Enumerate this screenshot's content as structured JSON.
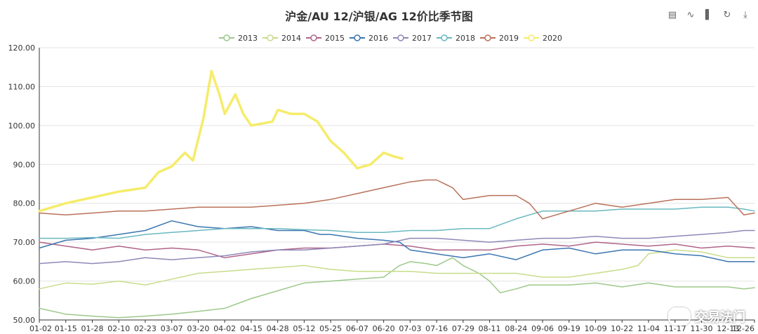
{
  "chart_data": {
    "type": "line",
    "title": "沪金/AU 12/沪银/AG 12价比季节图",
    "ylim": [
      50,
      120
    ],
    "y_ticks": [
      "50.00",
      "60.00",
      "70.00",
      "80.00",
      "90.00",
      "100.00",
      "110.00",
      "120.00"
    ],
    "x_ticks": [
      "01-02",
      "01-15",
      "01-28",
      "02-10",
      "02-23",
      "03-07",
      "03-20",
      "04-02",
      "04-15",
      "04-28",
      "05-12",
      "05-25",
      "06-07",
      "06-20",
      "07-03",
      "07-16",
      "07-29",
      "08-11",
      "08-24",
      "09-06",
      "09-19",
      "10-09",
      "10-22",
      "11-04",
      "11-17",
      "11-30",
      "12-13",
      "12-26"
    ],
    "xlabel": "",
    "ylabel": "",
    "legend_position": "top-center",
    "series": [
      {
        "name": "2013",
        "color": "#9cc98a",
        "points": [
          [
            0,
            53
          ],
          [
            1,
            51.5
          ],
          [
            2,
            51
          ],
          [
            3,
            50.6
          ],
          [
            4,
            51
          ],
          [
            5,
            51.5
          ],
          [
            6,
            52.2
          ],
          [
            7,
            53
          ],
          [
            8,
            55.5
          ],
          [
            9,
            57.5
          ],
          [
            10,
            59.5
          ],
          [
            11,
            60
          ],
          [
            12,
            60.5
          ],
          [
            13,
            61
          ],
          [
            13.6,
            64
          ],
          [
            14,
            65
          ],
          [
            14.6,
            64.5
          ],
          [
            15,
            64
          ],
          [
            15.6,
            66
          ],
          [
            16,
            64
          ],
          [
            16.6,
            62
          ],
          [
            17,
            60
          ],
          [
            17.4,
            57
          ],
          [
            18,
            58
          ],
          [
            18.5,
            59
          ],
          [
            19,
            59
          ],
          [
            20,
            59
          ],
          [
            21,
            59.5
          ],
          [
            22,
            58.5
          ],
          [
            23,
            59.5
          ],
          [
            24,
            58.5
          ],
          [
            25,
            58.5
          ],
          [
            26,
            58.5
          ],
          [
            26.6,
            58
          ],
          [
            27,
            58.3
          ]
        ]
      },
      {
        "name": "2014",
        "color": "#c8dc8a",
        "points": [
          [
            0,
            58
          ],
          [
            1,
            59.5
          ],
          [
            2,
            59.2
          ],
          [
            3,
            60
          ],
          [
            4,
            59
          ],
          [
            5,
            60.5
          ],
          [
            6,
            62
          ],
          [
            7,
            62.5
          ],
          [
            8,
            63
          ],
          [
            9,
            63.5
          ],
          [
            10,
            64
          ],
          [
            11,
            63
          ],
          [
            12,
            62.5
          ],
          [
            13,
            62.5
          ],
          [
            14,
            62.5
          ],
          [
            15,
            62
          ],
          [
            16,
            62
          ],
          [
            17,
            62
          ],
          [
            18,
            62
          ],
          [
            19,
            61
          ],
          [
            20,
            61
          ],
          [
            21,
            62
          ],
          [
            22,
            63
          ],
          [
            22.6,
            64
          ],
          [
            23,
            67
          ],
          [
            24,
            68
          ],
          [
            25,
            67.5
          ],
          [
            26,
            66
          ],
          [
            27,
            66
          ]
        ]
      },
      {
        "name": "2015",
        "color": "#b0648a",
        "points": [
          [
            0,
            70
          ],
          [
            1,
            69
          ],
          [
            2,
            68
          ],
          [
            3,
            69
          ],
          [
            4,
            68
          ],
          [
            5,
            68.5
          ],
          [
            6,
            68
          ],
          [
            7,
            66
          ],
          [
            8,
            67
          ],
          [
            9,
            68
          ],
          [
            10,
            68.5
          ],
          [
            11,
            68.5
          ],
          [
            12,
            69
          ],
          [
            13,
            69.5
          ],
          [
            14,
            69
          ],
          [
            15,
            68
          ],
          [
            16,
            68
          ],
          [
            17,
            68
          ],
          [
            18,
            69
          ],
          [
            19,
            69.5
          ],
          [
            20,
            69
          ],
          [
            21,
            70
          ],
          [
            22,
            69.5
          ],
          [
            23,
            69
          ],
          [
            24,
            69.5
          ],
          [
            25,
            68.5
          ],
          [
            26,
            69
          ],
          [
            27,
            68.5
          ]
        ]
      },
      {
        "name": "2016",
        "color": "#3a76b0",
        "points": [
          [
            0,
            68.5
          ],
          [
            1,
            70.5
          ],
          [
            2,
            71
          ],
          [
            3,
            72
          ],
          [
            4,
            73
          ],
          [
            5,
            75.5
          ],
          [
            6,
            74
          ],
          [
            7,
            73.5
          ],
          [
            8,
            74
          ],
          [
            9,
            73
          ],
          [
            10,
            73
          ],
          [
            10.6,
            72
          ],
          [
            11,
            72
          ],
          [
            12,
            71
          ],
          [
            13,
            70.5
          ],
          [
            13.6,
            70
          ],
          [
            14,
            68
          ],
          [
            15,
            67
          ],
          [
            16,
            66
          ],
          [
            17,
            67
          ],
          [
            18,
            65.5
          ],
          [
            19,
            68
          ],
          [
            20,
            68.5
          ],
          [
            21,
            67
          ],
          [
            22,
            68
          ],
          [
            23,
            68
          ],
          [
            24,
            67
          ],
          [
            25,
            66.5
          ],
          [
            26,
            65
          ],
          [
            27,
            65
          ]
        ]
      },
      {
        "name": "2017",
        "color": "#8e88b8",
        "points": [
          [
            0,
            64.5
          ],
          [
            1,
            65
          ],
          [
            2,
            64.5
          ],
          [
            3,
            65
          ],
          [
            4,
            66
          ],
          [
            5,
            65.5
          ],
          [
            6,
            66
          ],
          [
            7,
            66.5
          ],
          [
            8,
            67.5
          ],
          [
            9,
            68
          ],
          [
            10,
            68
          ],
          [
            11,
            68.5
          ],
          [
            12,
            69
          ],
          [
            13,
            69.5
          ],
          [
            14,
            71
          ],
          [
            15,
            71
          ],
          [
            16,
            70.5
          ],
          [
            17,
            70
          ],
          [
            18,
            70.5
          ],
          [
            19,
            71
          ],
          [
            20,
            71
          ],
          [
            21,
            71.5
          ],
          [
            22,
            71
          ],
          [
            23,
            71
          ],
          [
            24,
            71.5
          ],
          [
            25,
            72
          ],
          [
            26,
            72.5
          ],
          [
            26.6,
            73
          ],
          [
            27,
            73
          ]
        ]
      },
      {
        "name": "2018",
        "color": "#6ab8c0",
        "points": [
          [
            0,
            71
          ],
          [
            1,
            71
          ],
          [
            2,
            71.2
          ],
          [
            3,
            71
          ],
          [
            4,
            72
          ],
          [
            5,
            72.5
          ],
          [
            6,
            73
          ],
          [
            7,
            73.5
          ],
          [
            8,
            73.5
          ],
          [
            9,
            73.5
          ],
          [
            10,
            73.2
          ],
          [
            11,
            73
          ],
          [
            12,
            72.5
          ],
          [
            13,
            72.5
          ],
          [
            14,
            73
          ],
          [
            15,
            73
          ],
          [
            16,
            73.5
          ],
          [
            17,
            73.5
          ],
          [
            17.6,
            75
          ],
          [
            18,
            76
          ],
          [
            19,
            78
          ],
          [
            20,
            78
          ],
          [
            21,
            78
          ],
          [
            22,
            78.5
          ],
          [
            23,
            78.5
          ],
          [
            24,
            78.5
          ],
          [
            25,
            79
          ],
          [
            26,
            79
          ],
          [
            26.6,
            78.5
          ],
          [
            27,
            78
          ]
        ]
      },
      {
        "name": "2019",
        "color": "#b8725a",
        "points": [
          [
            0,
            77.5
          ],
          [
            1,
            77
          ],
          [
            2,
            77.5
          ],
          [
            3,
            78
          ],
          [
            4,
            78
          ],
          [
            5,
            78.5
          ],
          [
            6,
            79
          ],
          [
            7,
            79
          ],
          [
            8,
            79
          ],
          [
            9,
            79.5
          ],
          [
            10,
            80
          ],
          [
            11,
            81
          ],
          [
            12,
            82.5
          ],
          [
            13,
            84
          ],
          [
            14,
            85.5
          ],
          [
            14.6,
            86
          ],
          [
            15,
            86
          ],
          [
            15.6,
            84
          ],
          [
            16,
            81
          ],
          [
            17,
            82
          ],
          [
            18,
            82
          ],
          [
            18.5,
            80
          ],
          [
            19,
            76
          ],
          [
            19.5,
            77
          ],
          [
            20,
            78
          ],
          [
            21,
            80
          ],
          [
            22,
            79
          ],
          [
            23,
            80
          ],
          [
            24,
            81
          ],
          [
            25,
            81
          ],
          [
            26,
            81.5
          ],
          [
            26.6,
            77
          ],
          [
            27,
            77.5
          ]
        ]
      },
      {
        "name": "2020",
        "color": "#f5ec6a",
        "points": [
          [
            0,
            78
          ],
          [
            1,
            80
          ],
          [
            2,
            81.5
          ],
          [
            3,
            83
          ],
          [
            4,
            84
          ],
          [
            4.5,
            88
          ],
          [
            5,
            89.5
          ],
          [
            5.5,
            93
          ],
          [
            5.8,
            91
          ],
          [
            6.2,
            102
          ],
          [
            6.5,
            114
          ],
          [
            6.8,
            108
          ],
          [
            7,
            103
          ],
          [
            7.4,
            108
          ],
          [
            7.7,
            103
          ],
          [
            8,
            100
          ],
          [
            8.4,
            100.5
          ],
          [
            8.8,
            101
          ],
          [
            9,
            104
          ],
          [
            9.5,
            103
          ],
          [
            10,
            103
          ],
          [
            10.5,
            101
          ],
          [
            11,
            96
          ],
          [
            11.5,
            93
          ],
          [
            12,
            89
          ],
          [
            12.5,
            90
          ],
          [
            13,
            93
          ],
          [
            13.4,
            92
          ],
          [
            13.7,
            91.5
          ]
        ]
      }
    ]
  },
  "toolbar": {
    "icons": [
      "data-view-icon",
      "line-switch-icon",
      "bar-switch-icon",
      "restore-icon",
      "download-icon"
    ]
  },
  "watermark": {
    "text": "交易法门"
  }
}
